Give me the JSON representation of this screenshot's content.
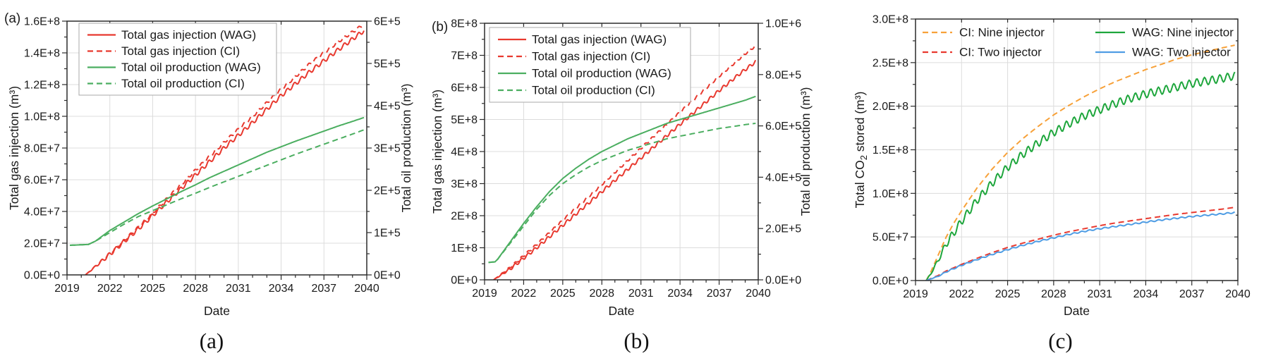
{
  "captions": {
    "a": "(a)",
    "b": "(b)",
    "c": "(c)"
  },
  "colors": {
    "grid": "#dcdcdc",
    "axis": "#2b2b2b",
    "text": "#1a1a1a",
    "legend_border": "#a9a9a9",
    "red": "#e8392f",
    "green_ab": "#4bae60",
    "green_c": "#1ea63c",
    "orange": "#f7a139",
    "blue": "#4f9de4"
  },
  "chart_data": [
    {
      "id": "a",
      "type": "line",
      "panel_label": "(a)",
      "xlabel": "Date",
      "xlim": [
        2019,
        2040
      ],
      "x_ticks": [
        2019,
        2022,
        2025,
        2028,
        2031,
        2034,
        2037,
        2040
      ],
      "x_minor_step": 1,
      "left_axis": {
        "label": "Total gas injection (m³)",
        "lim": [
          0,
          160000000.0
        ],
        "tick_values": [
          0,
          20000000.0,
          40000000.0,
          60000000.0,
          80000000.0,
          100000000.0,
          120000000.0,
          140000000.0,
          160000000.0
        ],
        "tick_labels": [
          "0.0E+0",
          "2.0E+7",
          "4.0E+7",
          "6.0E+7",
          "8.0E+7",
          "1.0E+8",
          "1.2E+8",
          "1.4E+8",
          "1.6E+8"
        ],
        "minor_step": 10000000.0
      },
      "right_axis": {
        "label": "Total oil production (m³)",
        "lim": [
          0,
          600000.0
        ],
        "tick_values": [
          0,
          100000.0,
          200000.0,
          300000.0,
          400000.0,
          500000.0,
          600000.0
        ],
        "tick_labels": [
          "0E+0",
          "1E+5",
          "2E+5",
          "3E+5",
          "4E+5",
          "5E+5",
          "6E+5"
        ],
        "minor_step": 50000.0
      },
      "legend": {
        "border": true,
        "columns": 1,
        "entries": [
          {
            "label": "Total gas injection (WAG)",
            "color": "#e8392f",
            "dash": false
          },
          {
            "label": "Total gas injection (CI)",
            "color": "#e8392f",
            "dash": true
          },
          {
            "label": "Total oil production (WAG)",
            "color": "#4bae60",
            "dash": false
          },
          {
            "label": "Total oil production (CI)",
            "color": "#4bae60",
            "dash": true
          }
        ]
      },
      "series": [
        {
          "name": "total-gas-injection-wag",
          "axis": "left",
          "color": "#e8392f",
          "dash": false,
          "wiggle_amp": 1300000.0,
          "wiggle_freq": 2,
          "x": [
            2020.3,
            2022,
            2024,
            2026,
            2028,
            2030,
            2032,
            2034,
            2036,
            2038,
            2039.8
          ],
          "y": [
            0,
            13000000.0,
            29000000.0,
            46000000.0,
            63000000.0,
            80000000.0,
            96000000.0,
            113000000.0,
            128000000.0,
            142000000.0,
            154000000.0
          ]
        },
        {
          "name": "total-gas-injection-ci",
          "axis": "left",
          "color": "#e8392f",
          "dash": true,
          "wiggle_amp": 900000.0,
          "wiggle_freq": 2,
          "x": [
            2020.3,
            2022,
            2024,
            2026,
            2028,
            2030,
            2032,
            2034,
            2036,
            2038,
            2039.8
          ],
          "y": [
            0,
            13500000.0,
            30000000.0,
            48000000.0,
            66000000.0,
            83500000.0,
            100000000.0,
            117000000.0,
            133000000.0,
            147000000.0,
            158000000.0
          ]
        },
        {
          "name": "total-oil-production-wag",
          "axis": "right",
          "color": "#4bae60",
          "dash": false,
          "wiggle_amp": 0,
          "wiggle_freq": 2,
          "x": [
            2019.2,
            2020.5,
            2021,
            2022,
            2023,
            2024,
            2025,
            2026,
            2027,
            2028,
            2029,
            2030,
            2031,
            2032,
            2033,
            2034,
            2035,
            2036,
            2037,
            2038,
            2039,
            2039.8
          ],
          "y": [
            70000.0,
            72000.0,
            80000.0,
            105000.0,
            125000.0,
            145000.0,
            163000.0,
            180000.0,
            197000.0,
            213000.0,
            230000.0,
            245000.0,
            260000.0,
            275000.0,
            290000.0,
            303000.0,
            316000.0,
            328000.0,
            340000.0,
            352000.0,
            363000.0,
            372000.0
          ]
        },
        {
          "name": "total-oil-production-ci",
          "axis": "right",
          "color": "#4bae60",
          "dash": true,
          "wiggle_amp": 0,
          "wiggle_freq": 2,
          "x": [
            2019.2,
            2020.5,
            2021,
            2022,
            2023,
            2024,
            2025,
            2026,
            2027,
            2028,
            2029,
            2030,
            2031,
            2032,
            2033,
            2034,
            2035,
            2036,
            2037,
            2038,
            2039,
            2039.8
          ],
          "y": [
            70000.0,
            72000.0,
            80000.0,
            100000.0,
            120000.0,
            138000.0,
            152000.0,
            166000.0,
            180000.0,
            193000.0,
            207000.0,
            220000.0,
            233000.0,
            246000.0,
            259000.0,
            272000.0,
            285000.0,
            297000.0,
            309000.0,
            321000.0,
            333000.0,
            343000.0
          ]
        }
      ]
    },
    {
      "id": "b",
      "type": "line",
      "panel_label": "(b)",
      "xlabel": "Date",
      "xlim": [
        2019,
        2040
      ],
      "x_ticks": [
        2019,
        2022,
        2025,
        2028,
        2031,
        2034,
        2037,
        2040
      ],
      "x_minor_step": 1,
      "left_axis": {
        "label": "Total gas injection (m³)",
        "lim": [
          0,
          800000000.0
        ],
        "tick_values": [
          0,
          100000000.0,
          200000000.0,
          300000000.0,
          400000000.0,
          500000000.0,
          600000000.0,
          700000000.0,
          800000000.0
        ],
        "tick_labels": [
          "0E+0",
          "1E+8",
          "2E+8",
          "3E+8",
          "4E+8",
          "5E+8",
          "6E+8",
          "7E+8",
          "8E+8"
        ],
        "minor_step": 50000000.0
      },
      "right_axis": {
        "label": "Total oil production (m³)",
        "lim": [
          0,
          1000000.0
        ],
        "tick_values": [
          0,
          200000.0,
          400000.0,
          600000.0,
          800000.0,
          1000000.0
        ],
        "tick_labels": [
          "0.0E+0",
          "2.0E+5",
          "4.0E+5",
          "6.0E+5",
          "8.0E+5",
          "1.0E+6"
        ],
        "minor_step": 100000.0
      },
      "legend": {
        "border": true,
        "columns": 1,
        "entries": [
          {
            "label": "Total gas injection (WAG)",
            "color": "#e8392f",
            "dash": false
          },
          {
            "label": "Total gas injection (CI)",
            "color": "#e8392f",
            "dash": true
          },
          {
            "label": "Total oil production (WAG)",
            "color": "#4bae60",
            "dash": false
          },
          {
            "label": "Total oil production (CI)",
            "color": "#4bae60",
            "dash": true
          }
        ]
      },
      "series": [
        {
          "name": "total-gas-injection-wag",
          "axis": "left",
          "color": "#e8392f",
          "dash": false,
          "wiggle_amp": 5000000.0,
          "wiggle_freq": 2,
          "x": [
            2019.7,
            2021,
            2023,
            2025,
            2027,
            2029,
            2031,
            2033,
            2035,
            2037,
            2038.5,
            2039.8
          ],
          "y": [
            0,
            35000000.0,
            100000000.0,
            170000000.0,
            240000000.0,
            310000000.0,
            380000000.0,
            450000000.0,
            520000000.0,
            590000000.0,
            640000000.0,
            680000000.0
          ]
        },
        {
          "name": "total-gas-injection-ci",
          "axis": "left",
          "color": "#e8392f",
          "dash": true,
          "wiggle_amp": 3500000.0,
          "wiggle_freq": 2,
          "x": [
            2019.7,
            2021,
            2023,
            2025,
            2027,
            2029,
            2031,
            2033,
            2035,
            2037,
            2039,
            2039.8
          ],
          "y": [
            0,
            40000000.0,
            110000000.0,
            185000000.0,
            260000000.0,
            335000000.0,
            410000000.0,
            485000000.0,
            560000000.0,
            635000000.0,
            705000000.0,
            730000000.0
          ]
        },
        {
          "name": "total-oil-production-wag",
          "axis": "right",
          "color": "#4bae60",
          "dash": false,
          "wiggle_amp": 0,
          "wiggle_freq": 2,
          "x": [
            2019.3,
            2019.8,
            2020,
            2021,
            2022,
            2023,
            2024,
            2025,
            2026,
            2027,
            2028,
            2029,
            2030,
            2031,
            2032,
            2033,
            2034,
            2035,
            2036,
            2037,
            2038,
            2039,
            2039.8
          ],
          "y": [
            68000.0,
            70000.0,
            80000.0,
            150000.0,
            220000.0,
            285000.0,
            345000.0,
            395000.0,
            435000.0,
            470000.0,
            500000.0,
            525000.0,
            550000.0,
            570000.0,
            590000.0,
            610000.0,
            625000.0,
            640000.0,
            655000.0,
            670000.0,
            685000.0,
            700000.0,
            715000.0
          ]
        },
        {
          "name": "total-oil-production-ci",
          "axis": "right",
          "color": "#4bae60",
          "dash": true,
          "wiggle_amp": 0,
          "wiggle_freq": 2,
          "x": [
            2019.3,
            2019.8,
            2020,
            2021,
            2022,
            2023,
            2024,
            2025,
            2026,
            2027,
            2028,
            2029,
            2030,
            2031,
            2032,
            2033,
            2034,
            2035,
            2036,
            2037,
            2038,
            2039,
            2039.8
          ],
          "y": [
            68000.0,
            70000.0,
            80000.0,
            145000.0,
            210000.0,
            275000.0,
            330000.0,
            375000.0,
            410000.0,
            440000.0,
            465000.0,
            485000.0,
            505000.0,
            520000.0,
            535000.0,
            550000.0,
            560000.0,
            570000.0,
            580000.0,
            590000.0,
            597000.0,
            605000.0,
            610000.0
          ]
        }
      ]
    },
    {
      "id": "c",
      "type": "line",
      "panel_label": "",
      "xlabel": "Date",
      "xlim": [
        2019,
        2040
      ],
      "x_ticks": [
        2019,
        2022,
        2025,
        2028,
        2031,
        2034,
        2037,
        2040
      ],
      "x_minor_step": 1,
      "left_axis": {
        "label": "Total CO2 stored (m³)",
        "label_parts": [
          {
            "t": "Total CO"
          },
          {
            "t": "2",
            "sub": true
          },
          {
            "t": " stored  (m³)"
          }
        ],
        "lim": [
          0,
          300000000.0
        ],
        "tick_values": [
          0,
          50000000.0,
          100000000.0,
          150000000.0,
          200000000.0,
          250000000.0,
          300000000.0
        ],
        "tick_labels": [
          "0.0E+0",
          "5.0E+7",
          "1.0E+8",
          "1.5E+8",
          "2.0E+8",
          "2.5E+8",
          "3.0E+8"
        ],
        "minor_step": 25000000.0
      },
      "right_axis": null,
      "legend": {
        "border": false,
        "columns": 2,
        "entries": [
          {
            "label": "CI: Nine injector",
            "color": "#f7a139",
            "dash": true
          },
          {
            "label": "CI: Two injector",
            "color": "#e8392f",
            "dash": true
          },
          {
            "label": "WAG: Nine injector",
            "color": "#1ea63c",
            "dash": false
          },
          {
            "label": "WAG: Two injector",
            "color": "#4f9de4",
            "dash": false
          }
        ]
      },
      "series": [
        {
          "name": "ci-nine-injector",
          "axis": "left",
          "color": "#f7a139",
          "dash": true,
          "wiggle_amp": 0,
          "wiggle_freq": 2,
          "x": [
            2019.7,
            2020,
            2020.5,
            2021,
            2021.5,
            2022,
            2023,
            2024,
            2025,
            2026,
            2027,
            2028,
            2029,
            2030,
            2031,
            2032,
            2033,
            2034,
            2035,
            2036,
            2037,
            2038,
            2039,
            2039.8
          ],
          "y": [
            0,
            10000000.0,
            30000000.0,
            50000000.0,
            66000000.0,
            80000000.0,
            106000000.0,
            128000000.0,
            147000000.0,
            163000000.0,
            177000000.0,
            190000000.0,
            201000000.0,
            211000000.0,
            220000000.0,
            228000000.0,
            235000000.0,
            242000000.0,
            248000000.0,
            254000000.0,
            259000000.0,
            263000000.0,
            267000000.0,
            270000000.0
          ]
        },
        {
          "name": "wag-nine-injector",
          "axis": "left",
          "color": "#1ea63c",
          "dash": false,
          "wiggle_amp": 4500000.0,
          "wiggle_freq": 2,
          "x": [
            2019.7,
            2020,
            2020.5,
            2021,
            2022,
            2023,
            2024,
            2025,
            2026,
            2027,
            2028,
            2029,
            2030,
            2031,
            2032,
            2033,
            2034,
            2035,
            2036,
            2037,
            2038,
            2039,
            2039.8
          ],
          "y": [
            0,
            8000000.0,
            24000000.0,
            42000000.0,
            68000000.0,
            92000000.0,
            112000000.0,
            130000000.0,
            145000000.0,
            158000000.0,
            170000000.0,
            180000000.0,
            189000000.0,
            196000000.0,
            203000000.0,
            209000000.0,
            214000000.0,
            218000000.0,
            222000000.0,
            226000000.0,
            229000000.0,
            232000000.0,
            235000000.0
          ]
        },
        {
          "name": "ci-two-injector",
          "axis": "left",
          "color": "#e8392f",
          "dash": true,
          "wiggle_amp": 0,
          "wiggle_freq": 2,
          "x": [
            2019.7,
            2020.5,
            2021,
            2022,
            2023,
            2024,
            2025,
            2026,
            2027,
            2028,
            2029,
            2030,
            2031,
            2032,
            2033,
            2034,
            2035,
            2036,
            2037,
            2038,
            2039,
            2039.8
          ],
          "y": [
            0,
            6000000.0,
            11000000.0,
            18500000.0,
            25500000.0,
            32000000.0,
            38000000.0,
            43000000.0,
            47500000.0,
            52000000.0,
            56000000.0,
            59500000.0,
            63000000.0,
            66000000.0,
            68500000.0,
            71000000.0,
            73500000.0,
            76000000.0,
            78000000.0,
            80000000.0,
            82000000.0,
            84000000.0
          ]
        },
        {
          "name": "wag-two-injector",
          "axis": "left",
          "color": "#4f9de4",
          "dash": false,
          "wiggle_amp": 700000.0,
          "wiggle_freq": 2,
          "x": [
            2019.7,
            2020.5,
            2021,
            2022,
            2023,
            2024,
            2025,
            2026,
            2027,
            2028,
            2029,
            2030,
            2031,
            2032,
            2033,
            2034,
            2035,
            2036,
            2037,
            2038,
            2039,
            2039.8
          ],
          "y": [
            0,
            5000000.0,
            10000000.0,
            17500000.0,
            24000000.0,
            30000000.0,
            35500000.0,
            40500000.0,
            45000000.0,
            49000000.0,
            53000000.0,
            56500000.0,
            59500000.0,
            62000000.0,
            64500000.0,
            67000000.0,
            69500000.0,
            71500000.0,
            73500000.0,
            75000000.0,
            76500000.0,
            78000000.0
          ]
        }
      ]
    }
  ]
}
